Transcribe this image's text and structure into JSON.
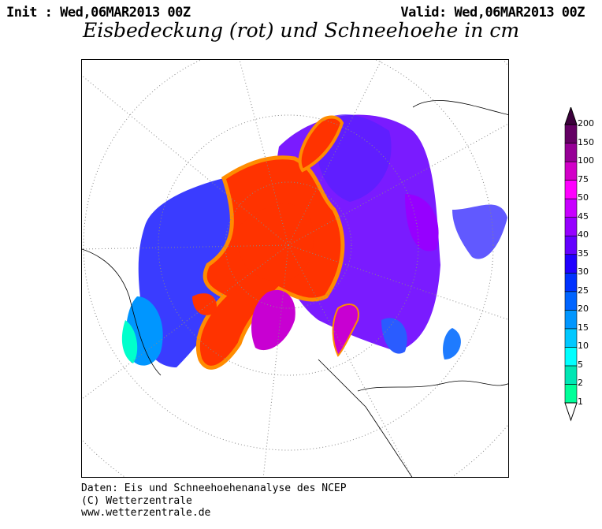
{
  "header": {
    "init": "Init : Wed,06MAR2013 00Z",
    "valid": "Valid: Wed,06MAR2013 00Z",
    "title": "Eisbedeckung (rot) und Schneehoehe in cm"
  },
  "footer": {
    "line1": "Daten: Eis und Schneehoehenanalyse des NCEP",
    "line2": "(C) Wetterzentrale",
    "line3": "www.wetterzentrale.de"
  },
  "map": {
    "projection": "polar stereographic (North Pole)",
    "ice_color": "#ff3300",
    "ice_edge_color": "#ff8c00"
  },
  "legend": {
    "unit": "cm",
    "labels": [
      "1",
      "2",
      "5",
      "10",
      "15",
      "20",
      "25",
      "30",
      "35",
      "40",
      "45",
      "50",
      "75",
      "100",
      "150",
      "200"
    ],
    "colors": [
      "#00ff99",
      "#00e6b4",
      "#00ffff",
      "#00c8ff",
      "#0096ff",
      "#0064ff",
      "#0032ff",
      "#2000ff",
      "#6400ff",
      "#9600ff",
      "#c800ff",
      "#ff00ff",
      "#d200c8",
      "#960096",
      "#640064",
      "#3c003c"
    ]
  }
}
